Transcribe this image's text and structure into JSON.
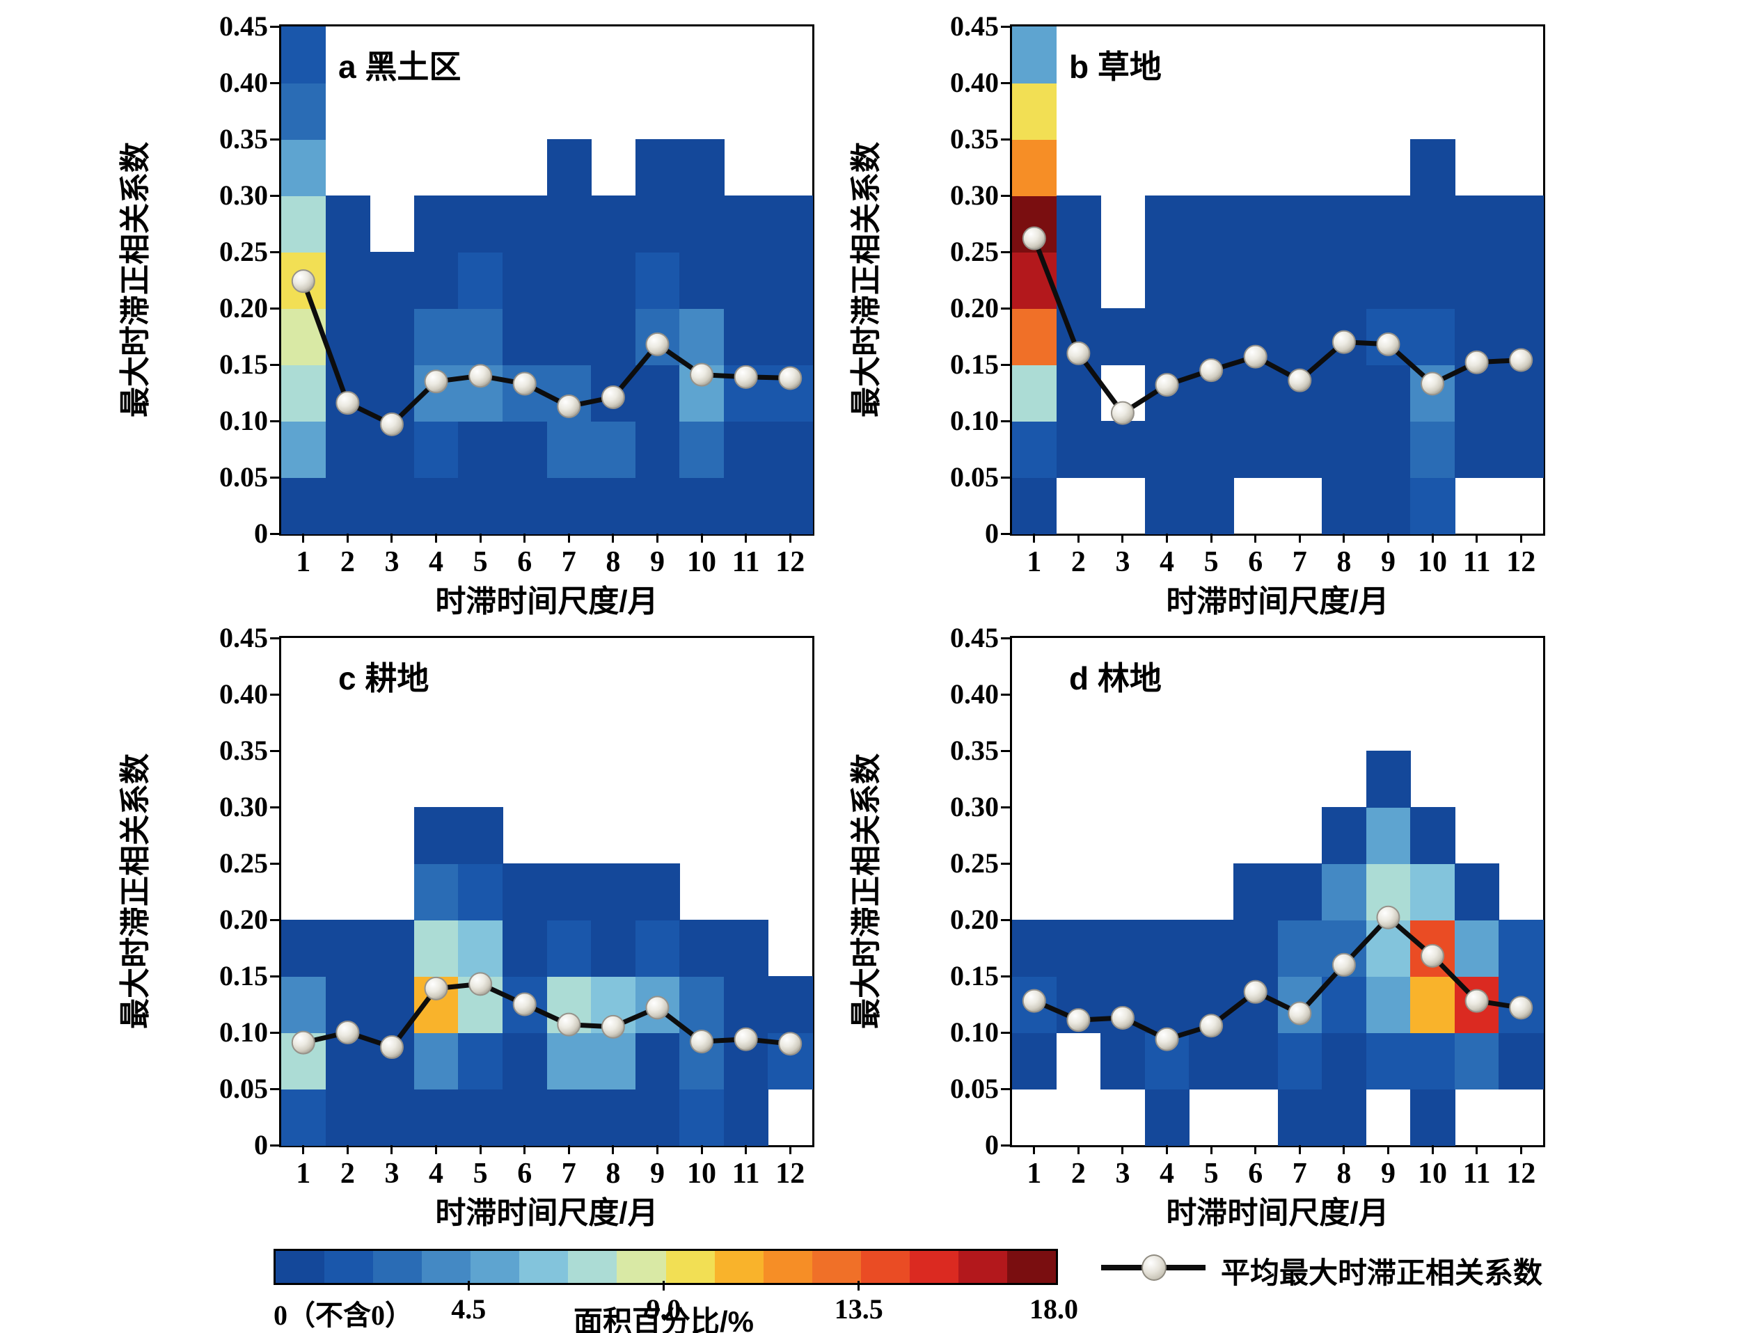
{
  "figure": {
    "type": "heatmap-grid-with-mean-line",
    "panels_layout": "2x2",
    "background": "#ffffff"
  },
  "axes": {
    "x_label": "时滞时间尺度/月",
    "y_label": "最大时滞正相关系数",
    "x_ticks": [
      "1",
      "2",
      "3",
      "4",
      "5",
      "6",
      "7",
      "8",
      "9",
      "10",
      "11",
      "12"
    ],
    "y_ticks": [
      "0",
      "0.05",
      "0.10",
      "0.15",
      "0.20",
      "0.25",
      "0.30",
      "0.35",
      "0.40",
      "0.45"
    ],
    "y_min": 0,
    "y_max": 0.45,
    "y_bin_step": 0.05,
    "grid": "off"
  },
  "palette": [
    "#14489A",
    "#1A57AB",
    "#2A6CB5",
    "#4489C4",
    "#5EA4D0",
    "#83C4DC",
    "#ACDCD5",
    "#D9E9A5",
    "#F2DF54",
    "#F9B32B",
    "#F68E26",
    "#F07028",
    "#EA4C24",
    "#DB2A21",
    "#B3181C",
    "#7A0E10"
  ],
  "colorbar": {
    "title": "面积百分比/%",
    "labels": [
      "0（不含0）",
      "4.5",
      "9.0",
      "13.5",
      "18.0"
    ],
    "min": 0,
    "max": 18.0,
    "n_segments": 16,
    "segment_width_value": 1.125,
    "note_zero_excluded": "0（不含0）"
  },
  "legend": {
    "label": "平均最大时滞正相关系数",
    "marker": "black line with pearl dot",
    "line_color": "#0d0d0d"
  },
  "chart_data": [
    {
      "id": "a",
      "title": "a 黑土区",
      "type": "heatmap",
      "x": [
        1,
        2,
        3,
        4,
        5,
        6,
        7,
        8,
        9,
        10,
        11,
        12
      ],
      "y_bin_edges": [
        0,
        0.05,
        0.1,
        0.15,
        0.2,
        0.25,
        0.3,
        0.35,
        0.4,
        0.45
      ],
      "cell_value_is": "palette index of area-percent bin (bin = index*1.125 .. (index+1)*1.125 %), null = empty",
      "grid_rows_bottom_to_top": [
        [
          0,
          0,
          0,
          0,
          0,
          0,
          0,
          0,
          0,
          0,
          0,
          0
        ],
        [
          4,
          0,
          0,
          1,
          0,
          0,
          2,
          2,
          0,
          2,
          0,
          0
        ],
        [
          6,
          0,
          0,
          3,
          3,
          2,
          2,
          0,
          0,
          4,
          1,
          1
        ],
        [
          7,
          0,
          0,
          2,
          2,
          0,
          0,
          0,
          2,
          3,
          0,
          0
        ],
        [
          8,
          0,
          0,
          0,
          1,
          0,
          0,
          0,
          1,
          0,
          0,
          0
        ],
        [
          6,
          0,
          null,
          0,
          0,
          0,
          0,
          0,
          0,
          0,
          0,
          0
        ],
        [
          4,
          null,
          null,
          null,
          null,
          null,
          0,
          null,
          0,
          0,
          null,
          null
        ],
        [
          2,
          null,
          null,
          null,
          null,
          null,
          null,
          null,
          null,
          null,
          null,
          null
        ],
        [
          1,
          null,
          null,
          null,
          null,
          null,
          null,
          null,
          null,
          null,
          null,
          null
        ]
      ],
      "mean_line": [
        0.224,
        0.116,
        0.097,
        0.135,
        0.14,
        0.133,
        0.113,
        0.121,
        0.168,
        0.141,
        0.139,
        0.138
      ]
    },
    {
      "id": "b",
      "title": "b 草地",
      "type": "heatmap",
      "x": [
        1,
        2,
        3,
        4,
        5,
        6,
        7,
        8,
        9,
        10,
        11,
        12
      ],
      "y_bin_edges": [
        0,
        0.05,
        0.1,
        0.15,
        0.2,
        0.25,
        0.3,
        0.35,
        0.4,
        0.45
      ],
      "cell_value_is": "palette index of area-percent bin, null = empty",
      "grid_rows_bottom_to_top": [
        [
          0,
          null,
          null,
          0,
          0,
          null,
          null,
          0,
          0,
          1,
          null,
          null
        ],
        [
          1,
          0,
          0,
          0,
          0,
          0,
          0,
          0,
          0,
          2,
          0,
          0
        ],
        [
          6,
          0,
          null,
          0,
          0,
          0,
          0,
          0,
          0,
          3,
          0,
          0
        ],
        [
          11,
          0,
          0,
          0,
          0,
          0,
          0,
          0,
          1,
          1,
          0,
          0
        ],
        [
          14,
          0,
          null,
          0,
          0,
          0,
          0,
          0,
          0,
          0,
          0,
          0
        ],
        [
          15,
          0,
          null,
          0,
          0,
          0,
          0,
          0,
          0,
          0,
          0,
          0
        ],
        [
          10,
          null,
          null,
          null,
          null,
          null,
          null,
          null,
          null,
          0,
          null,
          null
        ],
        [
          8,
          null,
          null,
          null,
          null,
          null,
          null,
          null,
          null,
          null,
          null,
          null
        ],
        [
          4,
          null,
          null,
          null,
          null,
          null,
          null,
          null,
          null,
          null,
          null,
          null
        ]
      ],
      "mean_line": [
        0.262,
        0.16,
        0.107,
        0.132,
        0.145,
        0.157,
        0.136,
        0.17,
        0.168,
        0.133,
        0.152,
        0.154
      ]
    },
    {
      "id": "c",
      "title": "c 耕地",
      "type": "heatmap",
      "x": [
        1,
        2,
        3,
        4,
        5,
        6,
        7,
        8,
        9,
        10,
        11,
        12
      ],
      "y_bin_edges": [
        0,
        0.05,
        0.1,
        0.15,
        0.2,
        0.25,
        0.3,
        0.35,
        0.4,
        0.45
      ],
      "cell_value_is": "palette index of area-percent bin, null = empty",
      "grid_rows_bottom_to_top": [
        [
          1,
          0,
          0,
          0,
          0,
          0,
          0,
          0,
          0,
          1,
          0,
          null
        ],
        [
          6,
          0,
          0,
          3,
          1,
          0,
          4,
          4,
          0,
          2,
          0,
          1
        ],
        [
          3,
          0,
          0,
          9,
          6,
          1,
          6,
          5,
          4,
          2,
          0,
          0
        ],
        [
          0,
          0,
          0,
          6,
          5,
          0,
          1,
          0,
          1,
          0,
          0,
          null
        ],
        [
          null,
          null,
          null,
          2,
          1,
          0,
          0,
          0,
          0,
          null,
          null,
          null
        ],
        [
          null,
          null,
          null,
          0,
          0,
          null,
          null,
          null,
          null,
          null,
          null,
          null
        ],
        [
          null,
          null,
          null,
          null,
          null,
          null,
          null,
          null,
          null,
          null,
          null,
          null
        ],
        [
          null,
          null,
          null,
          null,
          null,
          null,
          null,
          null,
          null,
          null,
          null,
          null
        ],
        [
          null,
          null,
          null,
          null,
          null,
          null,
          null,
          null,
          null,
          null,
          null,
          null
        ]
      ],
      "mean_line": [
        0.091,
        0.1,
        0.087,
        0.139,
        0.143,
        0.125,
        0.107,
        0.105,
        0.122,
        0.092,
        0.094,
        0.09
      ]
    },
    {
      "id": "d",
      "title": "d 林地",
      "type": "heatmap",
      "x": [
        1,
        2,
        3,
        4,
        5,
        6,
        7,
        8,
        9,
        10,
        11,
        12
      ],
      "y_bin_edges": [
        0,
        0.05,
        0.1,
        0.15,
        0.2,
        0.25,
        0.3,
        0.35,
        0.4,
        0.45
      ],
      "cell_value_is": "palette index of area-percent bin, null = empty",
      "grid_rows_bottom_to_top": [
        [
          null,
          null,
          null,
          0,
          null,
          null,
          0,
          0,
          null,
          0,
          null,
          null
        ],
        [
          0,
          null,
          0,
          1,
          0,
          0,
          1,
          0,
          1,
          1,
          2,
          0
        ],
        [
          1,
          0,
          0,
          0,
          0,
          0,
          3,
          1,
          4,
          9,
          13,
          1
        ],
        [
          0,
          0,
          0,
          0,
          0,
          0,
          2,
          2,
          5,
          12,
          4,
          1
        ],
        [
          null,
          null,
          null,
          null,
          null,
          0,
          0,
          3,
          6,
          5,
          0,
          null
        ],
        [
          null,
          null,
          null,
          null,
          null,
          null,
          null,
          0,
          4,
          0,
          null,
          null
        ],
        [
          null,
          null,
          null,
          null,
          null,
          null,
          null,
          null,
          0,
          null,
          null,
          null
        ],
        [
          null,
          null,
          null,
          null,
          null,
          null,
          null,
          null,
          null,
          null,
          null,
          null
        ],
        [
          null,
          null,
          null,
          null,
          null,
          null,
          null,
          null,
          null,
          null,
          null,
          null
        ]
      ],
      "mean_line": [
        0.128,
        0.111,
        0.113,
        0.094,
        0.106,
        0.136,
        0.117,
        0.16,
        0.202,
        0.168,
        0.128,
        0.122
      ]
    }
  ]
}
